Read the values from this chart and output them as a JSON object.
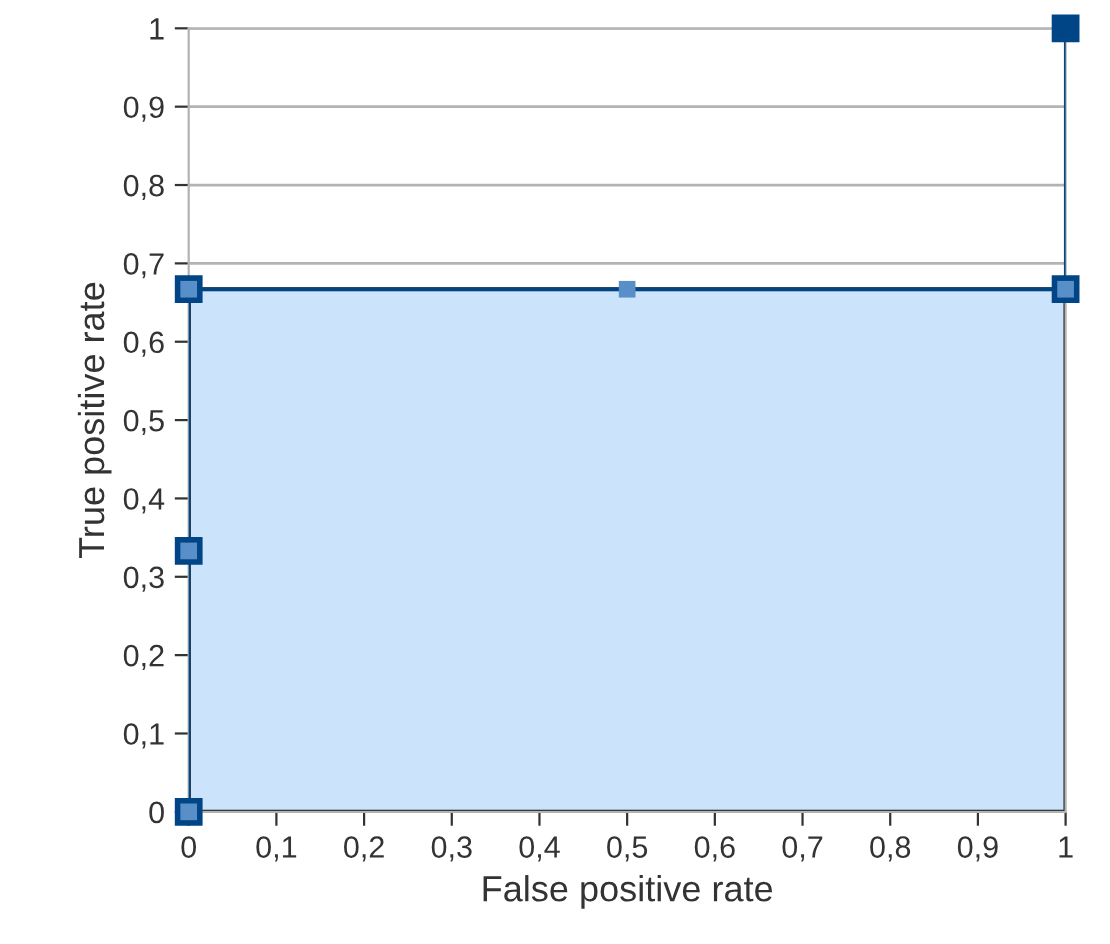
{
  "chart_data": {
    "type": "line",
    "xlabel": "False positive rate",
    "ylabel": "True positive rate",
    "series": [
      {
        "type": "area",
        "color": "#cce4fb",
        "x": [
          0,
          0,
          0,
          0.5,
          1
        ],
        "values": [
          0,
          0.333,
          0.667,
          0.667,
          0.667
        ]
      },
      {
        "color": "#004586",
        "x": [
          0,
          0,
          0,
          1,
          1
        ],
        "values": [
          0,
          0.333,
          0.667,
          0.667,
          1
        ]
      }
    ],
    "xlim": [
      0,
      1
    ],
    "ylim": [
      0,
      1
    ],
    "xticks": [
      0,
      {
        "value": 0.1,
        "label": "0,1"
      },
      {
        "value": 0.2,
        "label": "0,2"
      },
      {
        "value": 0.3,
        "label": "0,3"
      },
      {
        "value": 0.4,
        "label": "0,4"
      },
      {
        "value": 0.5,
        "label": "0,5"
      },
      {
        "value": 0.6,
        "label": "0,6"
      },
      {
        "value": 0.7,
        "label": "0,7"
      },
      {
        "value": 0.8,
        "label": "0,8"
      },
      {
        "value": 0.9,
        "label": "0,9"
      },
      1
    ],
    "yticks": [
      0,
      {
        "value": 0.1,
        "label": "0,1"
      },
      {
        "value": 0.2,
        "label": "0,2"
      },
      {
        "value": 0.3,
        "label": "0,3"
      },
      {
        "value": 0.4,
        "label": "0,4"
      },
      {
        "value": 0.5,
        "label": "0,5"
      },
      {
        "value": 0.6,
        "label": "0,6"
      },
      {
        "value": 0.7,
        "label": "0,7"
      },
      {
        "value": 0.8,
        "label": "0,8"
      },
      {
        "value": 0.9,
        "label": "0,9"
      },
      1
    ],
    "grid": "y",
    "marker": "square",
    "line_style": "solid"
  }
}
